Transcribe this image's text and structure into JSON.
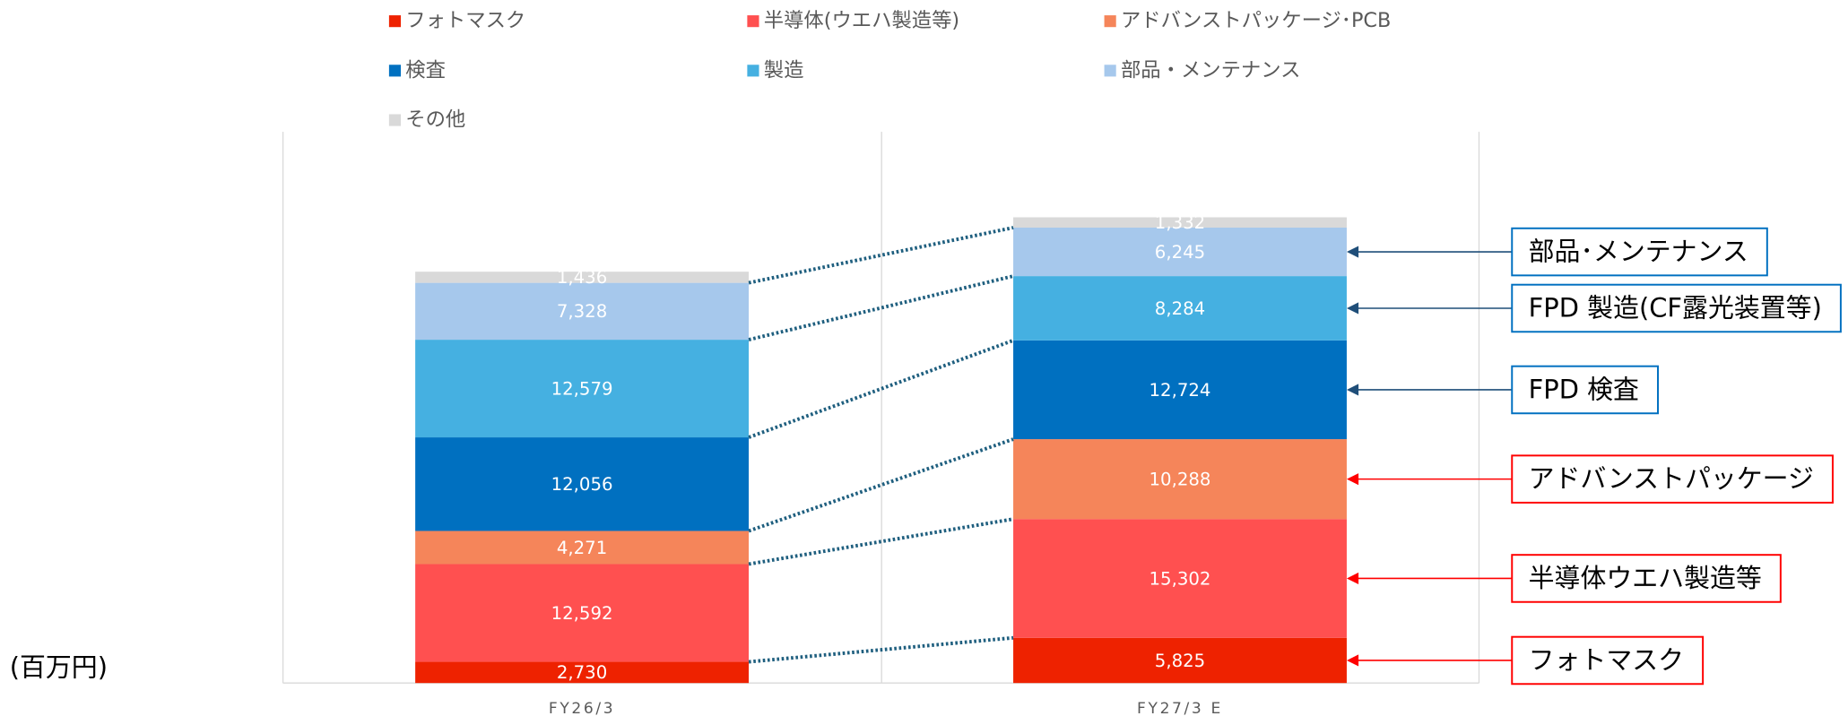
{
  "chart_data": {
    "type": "bar",
    "stacked": true,
    "y_axis_label": "(百万円)",
    "categories": [
      "FY26/3",
      "FY27/3 E"
    ],
    "ylim": [
      0,
      71000
    ],
    "legend": "top",
    "series": [
      {
        "name": "フォトマスク",
        "color": "#ee2200",
        "values": [
          2730,
          5825
        ],
        "value_labels": [
          "2,730",
          "5,825"
        ]
      },
      {
        "name": "半導体(ウエハ製造等)",
        "color": "#ff5050",
        "values": [
          12592,
          15302
        ],
        "value_labels": [
          "12,592",
          "15,302"
        ]
      },
      {
        "name": "アドバンストパッケージ･PCB",
        "color": "#f5855a",
        "values": [
          4271,
          10288
        ],
        "value_labels": [
          "4,271",
          "10,288"
        ]
      },
      {
        "name": "検査",
        "color": "#0070c0",
        "values": [
          12056,
          12724
        ],
        "value_labels": [
          "12,056",
          "12,724"
        ]
      },
      {
        "name": "製造",
        "color": "#45b0e1",
        "values": [
          12579,
          8284
        ],
        "value_labels": [
          "12,579",
          "8,284"
        ]
      },
      {
        "name": "部品・メンテナンス",
        "color": "#a6c8ec",
        "values": [
          7328,
          6245
        ],
        "value_labels": [
          "7,328",
          "6,245"
        ]
      },
      {
        "name": "その他",
        "color": "#d9d9d9",
        "values": [
          1436,
          1332
        ],
        "value_labels": [
          "1,436",
          "1,332"
        ]
      }
    ],
    "annotations": [
      {
        "text": "部品･メンテナンス",
        "color": "#0070c0"
      },
      {
        "text": "FPD 製造(CF露光装置等)",
        "color": "#0070c0"
      },
      {
        "text": "FPD 検査",
        "color": "#0070c0"
      },
      {
        "text": "アドバンストパッケージ",
        "color": "#ff0000"
      },
      {
        "text": "半導体ウエハ製造等",
        "color": "#ff0000"
      },
      {
        "text": "フォトマスク",
        "color": "#ff0000"
      }
    ]
  }
}
